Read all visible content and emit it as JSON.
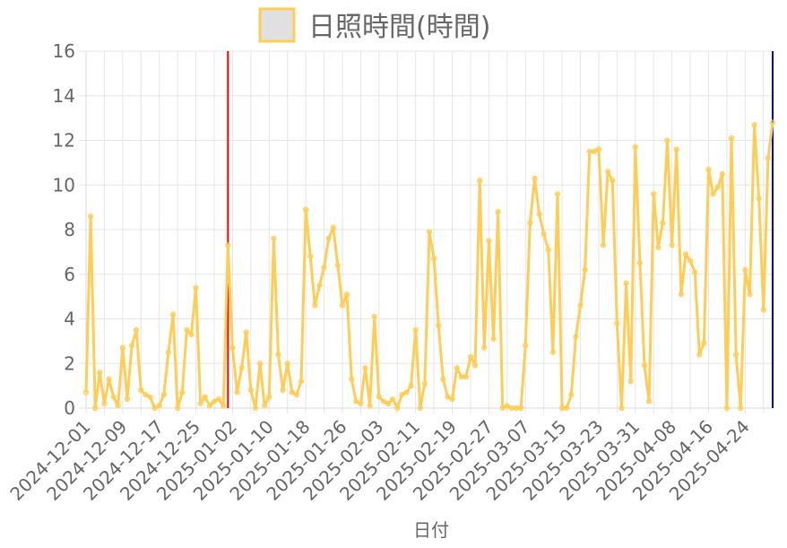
{
  "chart_data": {
    "type": "line",
    "legend": {
      "label": "日照時間(時間)",
      "position": "top"
    },
    "xlabel": "日付",
    "ylabel": "",
    "ylim": [
      0,
      16
    ],
    "y_ticks": [
      0,
      2,
      4,
      6,
      8,
      10,
      12,
      14,
      16
    ],
    "x_start": "2024-12-01",
    "x_end": "2025-04-30",
    "x_tick_labels": [
      "2024-12-01",
      "2024-12-09",
      "2024-12-17",
      "2024-12-25",
      "2025-01-02",
      "2025-01-10",
      "2025-01-18",
      "2025-01-26",
      "2025-02-03",
      "2025-02-11",
      "2025-02-19",
      "2025-02-27",
      "2025-03-07",
      "2025-03-15",
      "2025-03-23",
      "2025-03-31",
      "2025-04-08",
      "2025-04-16",
      "2025-04-24"
    ],
    "grid": true,
    "colors": {
      "line": "#ffcd56",
      "fill": "#e0e0e0",
      "marker_red": "#ff0000",
      "marker_blue": "#0000ff",
      "grid": "#e5e5e5"
    },
    "vertical_markers": [
      {
        "date": "2025-01-01",
        "color": "#ff0000"
      },
      {
        "date": "2025-04-30",
        "color": "#0000ff"
      }
    ],
    "series": [
      {
        "name": "日照時間(時間)",
        "values": [
          0.7,
          8.6,
          0,
          1.6,
          0.2,
          1.3,
          0.5,
          0.1,
          2.7,
          0.4,
          2.8,
          3.5,
          0.8,
          0.6,
          0.5,
          0,
          0.1,
          0.6,
          2.5,
          4.2,
          0,
          0.7,
          3.5,
          3.3,
          5.4,
          0.2,
          0.5,
          0.1,
          0.3,
          0.4,
          0.1,
          7.3,
          2.7,
          0.7,
          1.8,
          3.4,
          0.8,
          0,
          2.0,
          0.1,
          0.5,
          7.6,
          2.4,
          0.8,
          2.0,
          0.7,
          0.6,
          1.2,
          8.9,
          6.8,
          4.6,
          5.5,
          6.3,
          7.6,
          8.1,
          6.4,
          4.6,
          5.1,
          1.3,
          0.3,
          0.2,
          1.8,
          0.1,
          4.1,
          0.5,
          0.3,
          0.2,
          0.4,
          0,
          0.6,
          0.7,
          1.0,
          3.5,
          0,
          1.1,
          7.9,
          6.7,
          3.7,
          1.3,
          0.5,
          0.4,
          1.8,
          1.4,
          1.4,
          2.3,
          1.9,
          10.2,
          2.7,
          7.5,
          3.1,
          8.8,
          0,
          0.1,
          0,
          0,
          0,
          2.8,
          8.3,
          10.3,
          8.7,
          7.8,
          7.1,
          2.5,
          9.6,
          0,
          0,
          0.6,
          3.2,
          4.6,
          6.2,
          11.5,
          11.5,
          11.6,
          7.3,
          10.6,
          10.2,
          3.8,
          0,
          5.6,
          1.2,
          11.7,
          6.5,
          1.9,
          0.3,
          9.6,
          7.2,
          8.3,
          12.0,
          7.3,
          11.6,
          5.1,
          6.9,
          6.6,
          6.1,
          2.4,
          2.9,
          10.7,
          9.6,
          9.9,
          10.5,
          0,
          12.1,
          2.4,
          0,
          6.2,
          5.1,
          12.7,
          9.4,
          4.4,
          11.2,
          12.8
        ]
      }
    ]
  }
}
